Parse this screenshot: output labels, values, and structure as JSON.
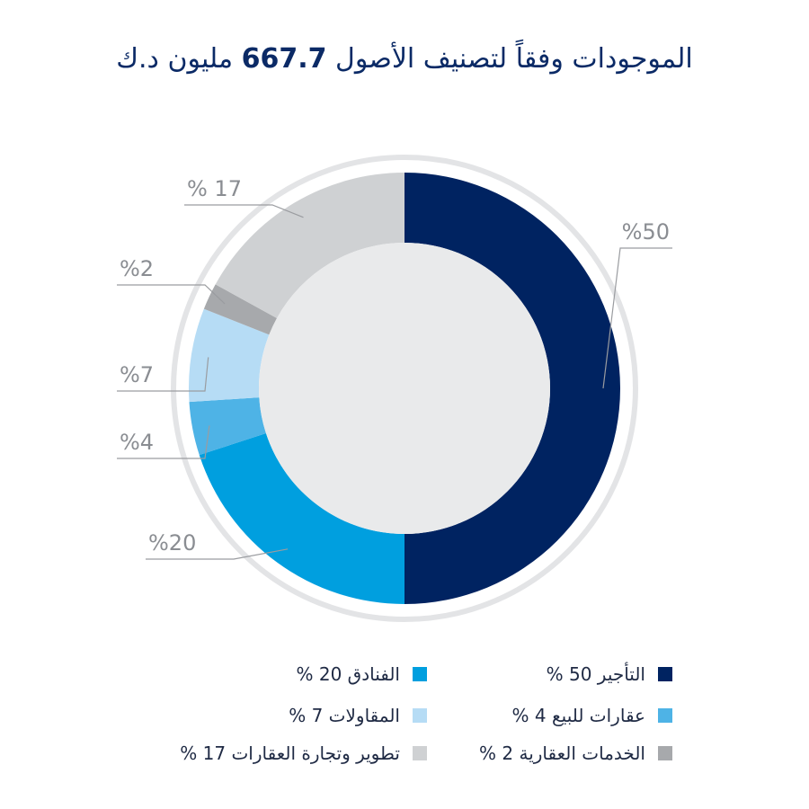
{
  "title": {
    "before": "الموجودات وفقاً لتصنيف الأصول",
    "total": "667.7",
    "after": "مليون د.ك"
  },
  "colors": {
    "leasing": "#002361",
    "hotels": "#009fdf",
    "for_sale": "#4eb3e6",
    "contracting": "#b6dcf5",
    "services": "#a7a9ac",
    "development": "#cfd1d3",
    "outer_ring": "#e3e4e6",
    "center": "#e9eaeb",
    "leader": "#9a9ca0"
  },
  "chart_data": {
    "type": "pie",
    "style": "donut",
    "slices": [
      {
        "key": "leasing",
        "value": 50,
        "label": "%50",
        "color": "#002361"
      },
      {
        "key": "hotels",
        "value": 20,
        "label": "%20",
        "color": "#009fdf"
      },
      {
        "key": "for_sale",
        "value": 4,
        "label": "%4",
        "color": "#4eb3e6"
      },
      {
        "key": "contracting",
        "value": 7,
        "label": "%7",
        "color": "#b6dcf5"
      },
      {
        "key": "services",
        "value": 2,
        "label": "%2",
        "color": "#a7a9ac"
      },
      {
        "key": "development",
        "value": 17,
        "label": "% 17",
        "color": "#cfd1d3"
      }
    ],
    "legend": [
      {
        "key": "leasing",
        "text": "التأجير 50 %"
      },
      {
        "key": "for_sale",
        "text": "عقارات للبيع 4 %"
      },
      {
        "key": "services",
        "text": "الخدمات العقارية 2 %"
      },
      {
        "key": "hotels",
        "text": "الفنادق 20 %"
      },
      {
        "key": "contracting",
        "text": "المقاولات 7 %"
      },
      {
        "key": "development",
        "text": "تطوير وتجارة العقارات 17 %"
      }
    ]
  }
}
